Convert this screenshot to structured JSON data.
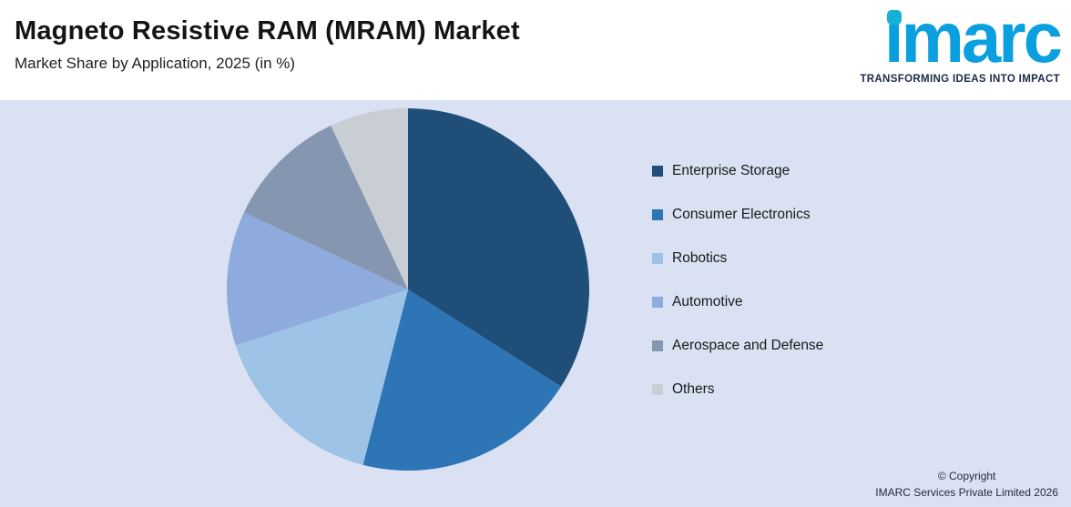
{
  "header": {
    "title": "Magneto Resistive RAM (MRAM) Market",
    "subtitle": "Market Share by Application, 2025 (in %)"
  },
  "brand": {
    "logo_text": "imarc",
    "tagline": "TRANSFORMING IDEAS INTO IMPACT"
  },
  "footer": {
    "copyright_line1": "© Copyright",
    "copyright_line2": "IMARC Services Private Limited 2026"
  },
  "colors": {
    "page_bg": "#d9e1f2",
    "header_bg": "#ffffff",
    "brand_blue": "#0a9fdf",
    "brand_teal": "#16b2d3"
  },
  "chart_data": {
    "type": "pie",
    "title": "Magneto Resistive RAM (MRAM) Market",
    "subtitle": "Market Share by Application, 2025 (in %)",
    "unit": "%",
    "start_angle_deg": 0,
    "direction": "clockwise",
    "legend_position": "right",
    "slices": [
      {
        "label": "Enterprise Storage",
        "value": 34,
        "color": "#1f4e79"
      },
      {
        "label": "Consumer Electronics",
        "value": 20,
        "color": "#2e75b6"
      },
      {
        "label": "Robotics",
        "value": 16,
        "color": "#9dc3e6"
      },
      {
        "label": "Automotive",
        "value": 12,
        "color": "#8faadc"
      },
      {
        "label": "Aerospace and Defense",
        "value": 11,
        "color": "#8496b0"
      },
      {
        "label": "Others",
        "value": 7,
        "color": "#c9cdd4"
      }
    ]
  }
}
